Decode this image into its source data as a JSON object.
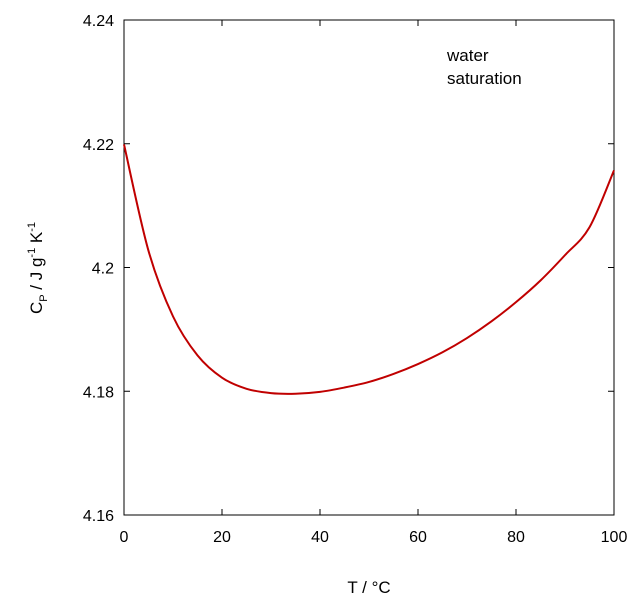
{
  "chart_data": {
    "type": "line",
    "title": "",
    "xlabel": "T / °C",
    "ylabel": {
      "base": "C",
      "base_sub": "P",
      "units_a": " / J g",
      "units_a_sup": "-1",
      "units_b": " K",
      "units_b_sup": "-1"
    },
    "xlim": [
      0,
      100
    ],
    "ylim": [
      4.16,
      4.24
    ],
    "xticks": [
      0,
      20,
      40,
      60,
      80,
      100
    ],
    "yticks": [
      4.16,
      4.18,
      4.2,
      4.22,
      4.24
    ],
    "xtick_labels": [
      "0",
      "20",
      "40",
      "60",
      "80",
      "100"
    ],
    "ytick_labels": [
      "4.16",
      "4.18",
      "4.2",
      "4.22",
      "4.24"
    ],
    "grid": false,
    "annotation": [
      "water",
      "saturation"
    ],
    "series": [
      {
        "color": "#c00000",
        "x": [
          0,
          5,
          10,
          15,
          20,
          25,
          30,
          35,
          40,
          45,
          50,
          55,
          60,
          65,
          70,
          75,
          80,
          85,
          90,
          95,
          100
        ],
        "y": [
          4.2199,
          4.2027,
          4.1921,
          4.1858,
          4.1822,
          4.1804,
          4.1797,
          4.1796,
          4.1799,
          4.1806,
          4.1815,
          4.1828,
          4.1844,
          4.1863,
          4.1886,
          4.1913,
          4.1944,
          4.1979,
          4.202,
          4.2065,
          4.2157
        ]
      }
    ]
  }
}
